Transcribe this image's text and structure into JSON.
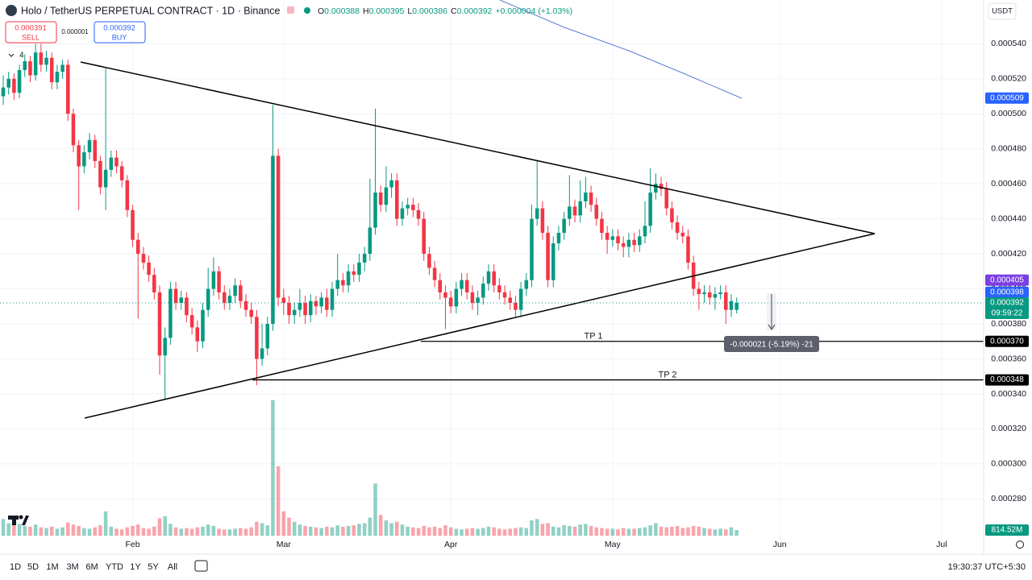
{
  "header": {
    "symbol": "Holo / TetherUS PERPETUAL CONTRACT · 1D · Binance",
    "ohlc_labels": [
      "O",
      "H",
      "L",
      "C"
    ],
    "open": 0.000388,
    "high": 0.000395,
    "low": 0.000386,
    "close": 0.000392,
    "change": "+0.000004 (+1.03%)",
    "sell": 0.000391,
    "sell_label": "SELL",
    "buy": 0.000392,
    "buy_label": "BUY",
    "spread": 1e-06,
    "indicator_count": 4,
    "currency": "USDT"
  },
  "toolbar": {
    "ranges": [
      "1D",
      "5D",
      "1M",
      "3M",
      "6M",
      "YTD",
      "1Y",
      "5Y",
      "All"
    ],
    "time": "19:30:37 UTC+5:30"
  },
  "chart_data": {
    "type": "candlestick",
    "up_color": "#089981",
    "down_color": "#f23645",
    "grid": true,
    "xlim": [
      -0.6,
      181.8
    ],
    "xticks": [
      {
        "value": 24,
        "label": "Feb"
      },
      {
        "value": 52,
        "label": "Mar"
      },
      {
        "value": 83,
        "label": "Apr"
      },
      {
        "value": 113,
        "label": "May"
      },
      {
        "value": 144,
        "label": "Jun"
      },
      {
        "value": 174,
        "label": "Jul"
      }
    ],
    "ylim": [
      0.000259,
      0.000565
    ],
    "yticks": [
      {
        "value": 0.00028,
        "label": "0.000280"
      },
      {
        "value": 0.0003,
        "label": "0.000300"
      },
      {
        "value": 0.00032,
        "label": "0.000320"
      },
      {
        "value": 0.00034,
        "label": "0.000340"
      },
      {
        "value": 0.00036,
        "label": "0.000360"
      },
      {
        "value": 0.00038,
        "label": "0.000380"
      },
      {
        "value": 0.0004,
        "label": "0.000400"
      },
      {
        "value": 0.00042,
        "label": "0.000420"
      },
      {
        "value": 0.00044,
        "label": "0.000440"
      },
      {
        "value": 0.00046,
        "label": "0.000460"
      },
      {
        "value": 0.00048,
        "label": "0.000480"
      },
      {
        "value": 0.0005,
        "label": "0.000500"
      },
      {
        "value": 0.00052,
        "label": "0.000520"
      },
      {
        "value": 0.00054,
        "label": "0.000540"
      }
    ],
    "open": [
      0.00051,
      0.000515,
      0.00052,
      0.000512,
      0.000525,
      0.00053,
      0.000522,
      0.000535,
      0.000528,
      0.000532,
      0.000518,
      0.000524,
      0.000528,
      0.0005,
      0.000482,
      0.00047,
      0.000478,
      0.000485,
      0.000473,
      0.000458,
      0.000468,
      0.000475,
      0.00047,
      0.000462,
      0.000445,
      0.000428,
      0.00042,
      0.000415,
      0.000408,
      0.000398,
      0.000362,
      0.000372,
      0.0004,
      0.000392,
      0.000395,
      0.000385,
      0.000378,
      0.00037,
      0.000388,
      0.0004,
      0.00041,
      0.000398,
      0.000392,
      0.000396,
      0.000402,
      0.000393,
      0.000388,
      0.000384,
      0.00036,
      0.000366,
      0.00038,
      0.000476,
      0.000395,
      0.000392,
      0.000385,
      0.000388,
      0.000392,
      0.000385,
      0.000393,
      0.00039,
      0.000395,
      0.000388,
      0.0004,
      0.000405,
      0.000402,
      0.00041,
      0.000408,
      0.000415,
      0.00042,
      0.000435,
      0.000455,
      0.000448,
      0.000458,
      0.000462,
      0.00044,
      0.000446,
      0.000448,
      0.000445,
      0.00044,
      0.00042,
      0.000412,
      0.000405,
      0.000398,
      0.000395,
      0.00039,
      0.0004,
      0.000405,
      0.000398,
      0.000392,
      0.000395,
      0.000403,
      0.00041,
      0.000402,
      0.000398,
      0.000395,
      0.000392,
      0.000388,
      0.0004,
      0.000405,
      0.00044,
      0.000446,
      0.000432,
      0.000405,
      0.000426,
      0.000432,
      0.00044,
      0.000447,
      0.000442,
      0.00045,
      0.000455,
      0.000448,
      0.00044,
      0.000432,
      0.000428,
      0.00043,
      0.000426,
      0.000424,
      0.000428,
      0.000425,
      0.00043,
      0.000436,
      0.000455,
      0.00046,
      0.000457,
      0.000446,
      0.000438,
      0.000432,
      0.00043,
      0.000415,
      0.0004,
      0.000397,
      0.000398,
      0.000395,
      0.000397,
      0.000398,
      0.000388,
      0.000388
    ],
    "high": [
      0.000522,
      0.000524,
      0.000523,
      0.000528,
      0.000534,
      0.000533,
      0.00054,
      0.00054,
      0.000536,
      0.000535,
      0.000528,
      0.000531,
      0.000531,
      0.000503,
      0.000485,
      0.000482,
      0.000489,
      0.000488,
      0.000476,
      0.000526,
      0.000479,
      0.000479,
      0.000473,
      0.000465,
      0.000448,
      0.000432,
      0.000424,
      0.000419,
      0.000412,
      0.000402,
      0.000378,
      0.000404,
      0.000404,
      0.000399,
      0.000398,
      0.000389,
      0.000382,
      0.000392,
      0.000412,
      0.000418,
      0.000413,
      0.000402,
      0.0004,
      0.000406,
      0.000405,
      0.000397,
      0.000392,
      0.000388,
      0.00038,
      0.000384,
      0.000505,
      0.00048,
      0.0004,
      0.000396,
      0.000392,
      0.0004,
      0.000396,
      0.000397,
      0.000396,
      0.000398,
      0.0004,
      0.000404,
      0.00042,
      0.000409,
      0.000414,
      0.000414,
      0.00042,
      0.000424,
      0.000463,
      0.000503,
      0.000459,
      0.00047,
      0.000466,
      0.000466,
      0.00045,
      0.000452,
      0.000452,
      0.000449,
      0.000444,
      0.000424,
      0.000416,
      0.000409,
      0.000402,
      0.000399,
      0.000404,
      0.000409,
      0.000409,
      0.000402,
      0.000399,
      0.000407,
      0.000414,
      0.000414,
      0.000406,
      0.000402,
      0.000399,
      0.000396,
      0.000404,
      0.000409,
      0.000448,
      0.000473,
      0.00045,
      0.000436,
      0.00043,
      0.000436,
      0.000444,
      0.000465,
      0.000451,
      0.000462,
      0.000464,
      0.000459,
      0.000452,
      0.000444,
      0.000436,
      0.000434,
      0.000434,
      0.00043,
      0.000432,
      0.000432,
      0.000434,
      0.00045,
      0.000469,
      0.000466,
      0.000464,
      0.000461,
      0.00045,
      0.000442,
      0.000436,
      0.000434,
      0.000419,
      0.000404,
      0.000402,
      0.000402,
      0.000401,
      0.000402,
      0.000402,
      0.000397,
      0.000395
    ],
    "low": [
      0.000505,
      0.000511,
      0.000508,
      0.000509,
      0.000521,
      0.000518,
      0.000519,
      0.000524,
      0.000524,
      0.000514,
      0.000514,
      0.00052,
      0.000496,
      0.000478,
      0.000445,
      0.000466,
      0.000474,
      0.000469,
      0.000454,
      0.000445,
      0.000464,
      0.000466,
      0.000458,
      0.000441,
      0.000424,
      0.000383,
      0.000411,
      0.000404,
      0.000394,
      0.000351,
      0.000337,
      0.000368,
      0.000388,
      0.000388,
      0.000381,
      0.000374,
      0.000364,
      0.000366,
      0.000384,
      0.000396,
      0.000394,
      0.000388,
      0.000388,
      0.000392,
      0.000389,
      0.000384,
      0.00038,
      0.000345,
      0.000356,
      0.000362,
      0.000376,
      0.00039,
      0.000385,
      0.00038,
      0.00038,
      0.000384,
      0.00038,
      0.000381,
      0.000385,
      0.000386,
      0.000384,
      0.000384,
      0.000396,
      0.000398,
      0.000398,
      0.000404,
      0.000404,
      0.00041,
      0.000416,
      0.000431,
      0.000444,
      0.000444,
      0.000452,
      0.000436,
      0.000436,
      0.000442,
      0.000441,
      0.000436,
      0.000416,
      0.000408,
      0.000401,
      0.000394,
      0.000377,
      0.000386,
      0.000386,
      0.000396,
      0.000394,
      0.000388,
      0.000385,
      0.000391,
      0.000399,
      0.000398,
      0.000394,
      0.000391,
      0.000388,
      0.000384,
      0.000384,
      0.000396,
      0.000401,
      0.000436,
      0.000428,
      0.000401,
      0.000401,
      0.000422,
      0.000428,
      0.000436,
      0.000438,
      0.000438,
      0.000446,
      0.000444,
      0.000436,
      0.000428,
      0.00042,
      0.000424,
      0.000422,
      0.000418,
      0.000418,
      0.000421,
      0.000421,
      0.000426,
      0.000432,
      0.000451,
      0.000453,
      0.000442,
      0.000434,
      0.000428,
      0.000426,
      0.000411,
      0.000396,
      0.000388,
      0.000392,
      0.000391,
      0.000388,
      0.000394,
      0.00038,
      0.000384,
      0.000386
    ],
    "close": [
      0.000515,
      0.00052,
      0.000512,
      0.000525,
      0.00053,
      0.000522,
      0.000535,
      0.000528,
      0.000532,
      0.000518,
      0.000524,
      0.000528,
      0.0005,
      0.000482,
      0.00047,
      0.000478,
      0.000485,
      0.000473,
      0.000458,
      0.000468,
      0.000475,
      0.00047,
      0.000462,
      0.000445,
      0.000428,
      0.00042,
      0.000415,
      0.000408,
      0.000398,
      0.000362,
      0.000372,
      0.0004,
      0.000392,
      0.000395,
      0.000385,
      0.000378,
      0.00037,
      0.000388,
      0.0004,
      0.00041,
      0.000398,
      0.000392,
      0.000396,
      0.000402,
      0.000393,
      0.000388,
      0.000384,
      0.00036,
      0.000366,
      0.00038,
      0.000476,
      0.000395,
      0.000392,
      0.000385,
      0.000388,
      0.000392,
      0.000385,
      0.000393,
      0.00039,
      0.000395,
      0.000388,
      0.0004,
      0.000405,
      0.000402,
      0.00041,
      0.000408,
      0.000415,
      0.00042,
      0.000435,
      0.000455,
      0.000448,
      0.000458,
      0.000462,
      0.00044,
      0.000446,
      0.000448,
      0.000445,
      0.00044,
      0.00042,
      0.000412,
      0.000405,
      0.000398,
      0.000395,
      0.00039,
      0.0004,
      0.000405,
      0.000398,
      0.000392,
      0.000395,
      0.000403,
      0.00041,
      0.000402,
      0.000398,
      0.000395,
      0.000392,
      0.000388,
      0.0004,
      0.000405,
      0.00044,
      0.000446,
      0.000432,
      0.000405,
      0.000426,
      0.000432,
      0.00044,
      0.000447,
      0.000442,
      0.00045,
      0.000455,
      0.000448,
      0.00044,
      0.000432,
      0.000428,
      0.00043,
      0.000426,
      0.000424,
      0.000428,
      0.000425,
      0.00043,
      0.000436,
      0.000455,
      0.00046,
      0.000457,
      0.000446,
      0.000438,
      0.000432,
      0.00043,
      0.000415,
      0.0004,
      0.000397,
      0.000398,
      0.000395,
      0.000397,
      0.000398,
      0.000388,
      0.000393,
      0.000392
    ],
    "volume_ylim": [
      0,
      77000
    ],
    "volume": [
      2400,
      1800,
      1500,
      1700,
      1400,
      1300,
      1600,
      1200,
      1100,
      1300,
      1000,
      1200,
      1900,
      1600,
      1400,
      1100,
      1000,
      1200,
      1500,
      3500,
      1300,
      1000,
      900,
      1200,
      1400,
      1600,
      1100,
      1000,
      1300,
      2500,
      2800,
      1700,
      1200,
      1000,
      1100,
      1000,
      1200,
      1300,
      1600,
      1400,
      1000,
      900,
      900,
      1000,
      1100,
      1000,
      1200,
      2000,
      1800,
      1500,
      19500,
      10000,
      3500,
      2600,
      2000,
      1600,
      1400,
      1300,
      1200,
      1100,
      1300,
      1200,
      1500,
      1300,
      1400,
      1500,
      1700,
      1800,
      2600,
      7500,
      3000,
      2200,
      1800,
      2000,
      1600,
      1300,
      1200,
      1100,
      1400,
      1200,
      1300,
      1100,
      1500,
      1200,
      1000,
      900,
      1000,
      1100,
      1000,
      1100,
      1300,
      1200,
      1000,
      900,
      1000,
      1100,
      1200,
      1100,
      2200,
      2400,
      1700,
      1800,
      1300,
      1200,
      1500,
      1400,
      1300,
      1600,
      1700,
      1400,
      1200,
      1100,
      1000,
      1000,
      900,
      1100,
      1000,
      1000,
      1100,
      1200,
      1500,
      1800,
      1300,
      1200,
      1300,
      1400,
      1100,
      1200,
      1400,
      1300,
      1100,
      1000,
      900,
      1000,
      900,
      1200,
      814.52
    ],
    "volume_tag": {
      "value": 814.52,
      "label": "814.52M",
      "color": "#089981"
    },
    "price_tags": [
      {
        "value": 0.000509,
        "label": "0.000509",
        "color": "#2962ff"
      },
      {
        "value": 0.000405,
        "label": "0.000405",
        "color": "#7b3fe4"
      },
      {
        "value": 0.000398,
        "label": "0.000398",
        "color": "#2962ff"
      },
      {
        "value": 0.000392,
        "label": "0.000392",
        "color": "#089981",
        "countdown": "09:59:22"
      }
    ],
    "levels": [
      {
        "name": "TP 1",
        "value": 0.00037,
        "tag": "0.000370"
      },
      {
        "name": "TP 2",
        "value": 0.000348,
        "tag": "0.000348"
      }
    ],
    "measure": "-0.000021 (-5.19%) -21"
  }
}
